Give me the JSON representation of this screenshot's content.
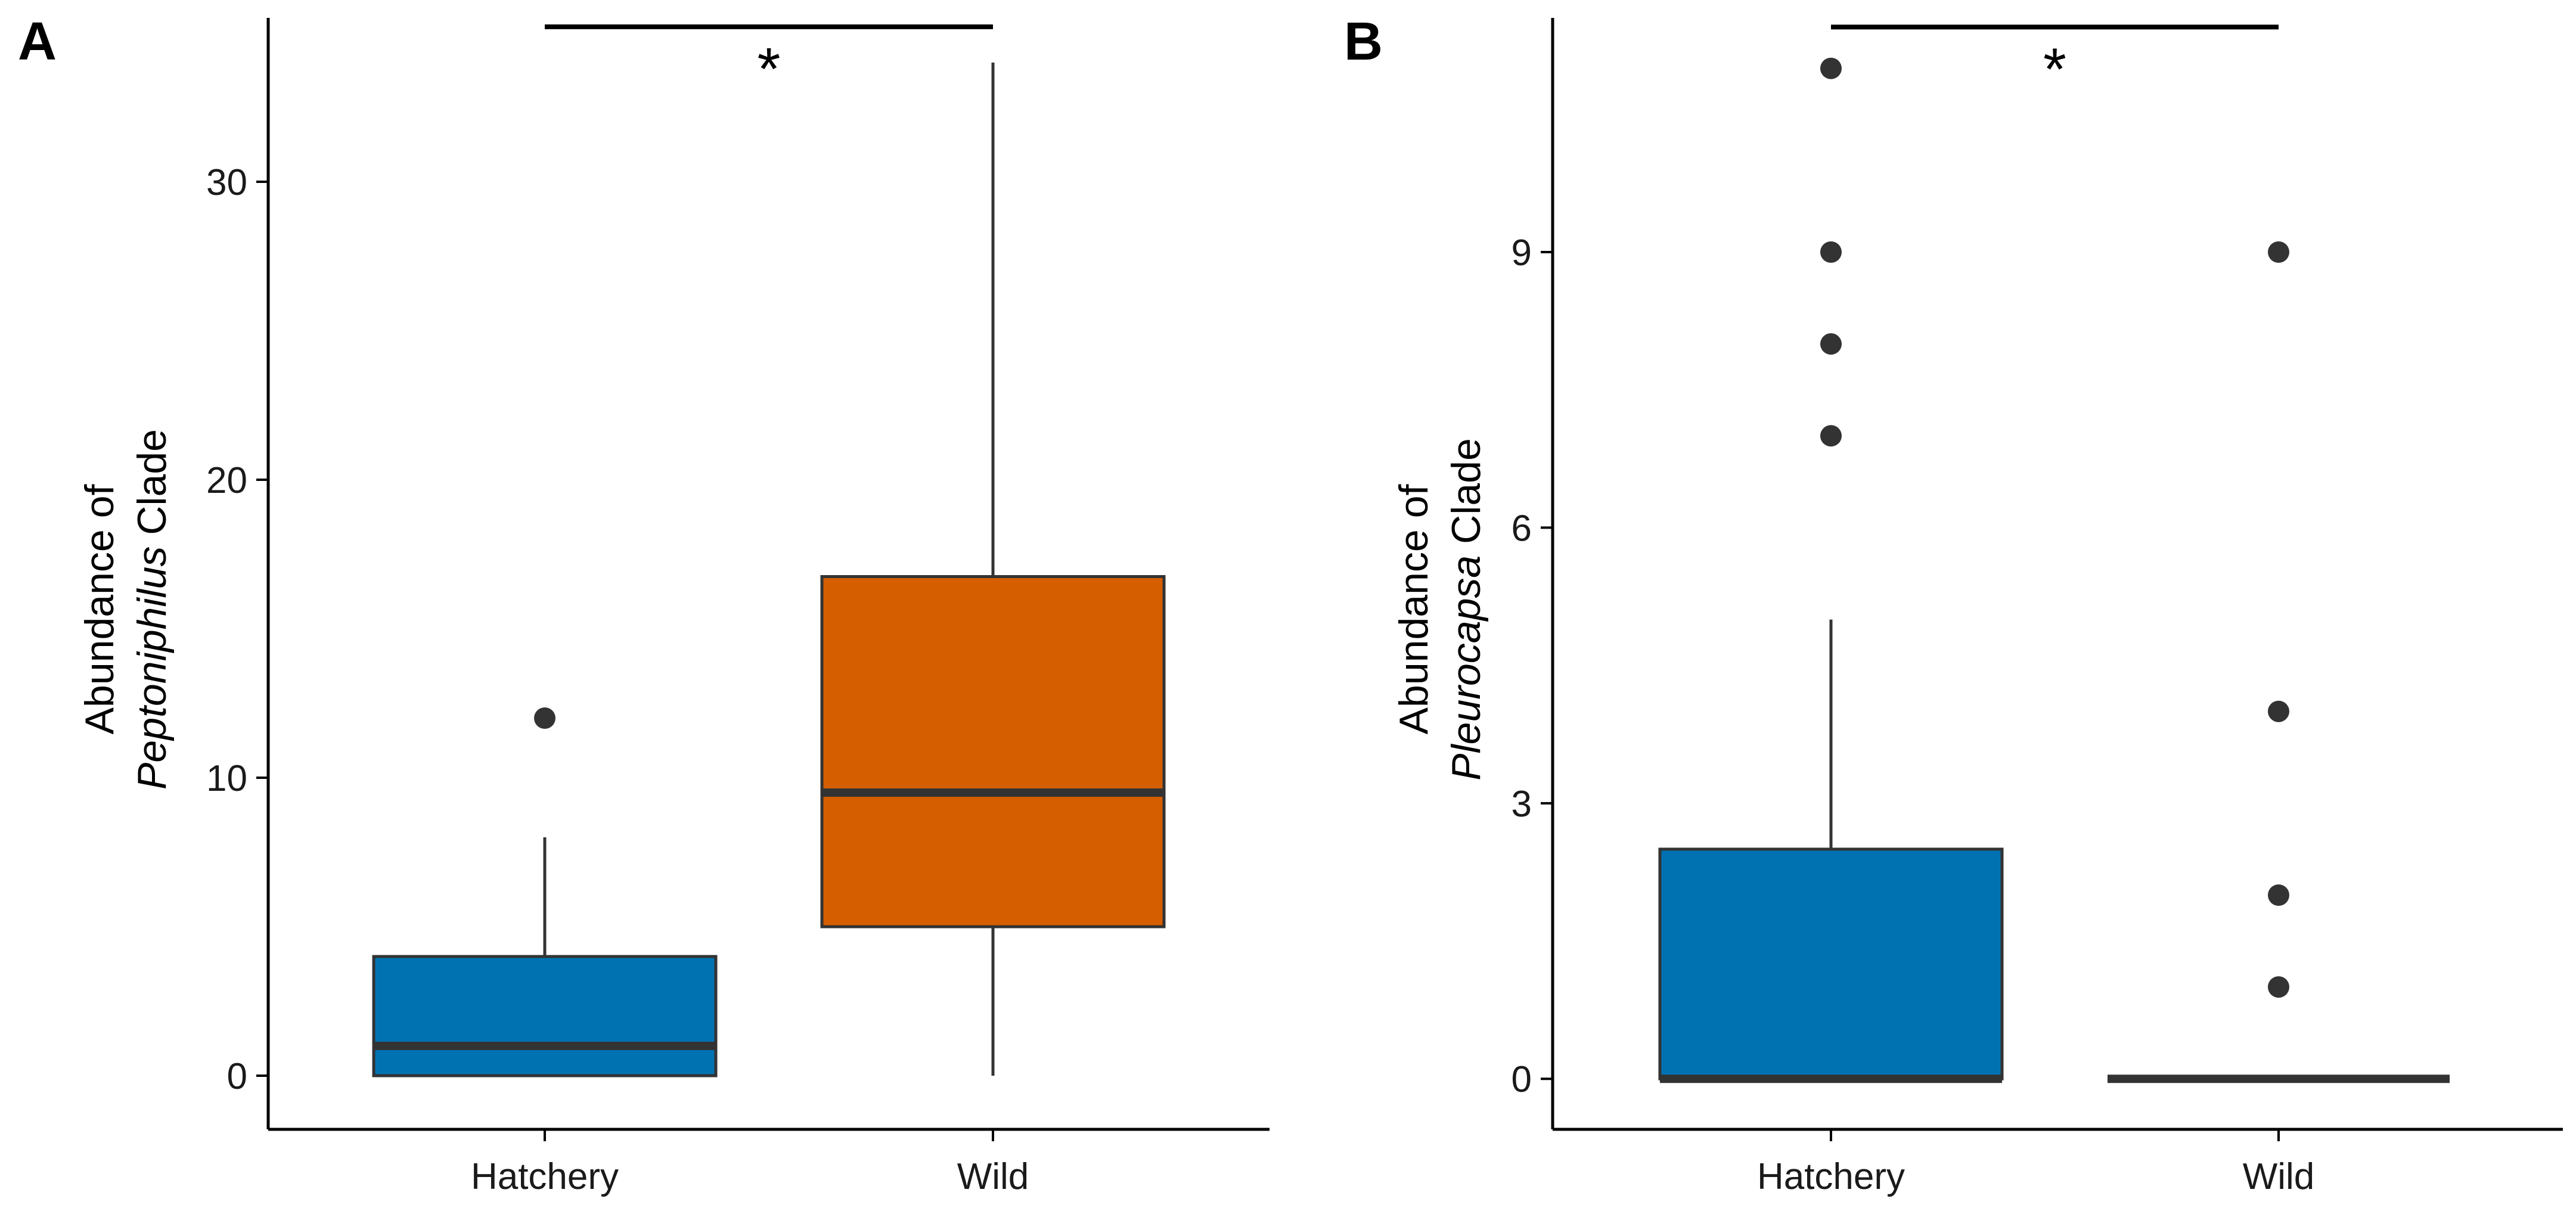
{
  "colors": {
    "hatchery": "#0072B2",
    "wild": "#D55E00",
    "outlier": "#333333"
  },
  "chart_data": [
    {
      "type": "box",
      "panel": "A",
      "ylabel_prefix": "Abundance of",
      "ylabel_italic": "Peptoniphilus",
      "ylabel_suffix": " Clade",
      "categories": [
        "Hatchery",
        "Wild"
      ],
      "ylim": [
        -1.8,
        35.5
      ],
      "yticks": [
        0,
        10,
        20,
        30
      ],
      "boxes": [
        {
          "category": "Hatchery",
          "q1": 0,
          "median": 1,
          "q3": 4,
          "whisker_low": 0,
          "whisker_high": 8,
          "outliers": [
            12
          ],
          "color": "#0072B2"
        },
        {
          "category": "Wild",
          "q1": 5,
          "median": 9.5,
          "q3": 16.75,
          "whisker_low": 0,
          "whisker_high": 34,
          "outliers": [],
          "color": "#D55E00"
        }
      ],
      "significance": {
        "label": "*",
        "from": "Hatchery",
        "to": "Wild",
        "level": 35.2
      }
    },
    {
      "type": "box",
      "panel": "B",
      "ylabel_prefix": "Abundance of",
      "ylabel_italic": "Pleurocapsa",
      "ylabel_suffix": " Clade",
      "categories": [
        "Hatchery",
        "Wild"
      ],
      "ylim": [
        -0.55,
        11.55
      ],
      "yticks": [
        0,
        3,
        6,
        9
      ],
      "boxes": [
        {
          "category": "Hatchery",
          "q1": 0,
          "median": 0,
          "q3": 2.5,
          "whisker_low": 0,
          "whisker_high": 5,
          "outliers": [
            7,
            8,
            9,
            11
          ],
          "color": "#0072B2"
        },
        {
          "category": "Wild",
          "q1": 0,
          "median": 0,
          "q3": 0,
          "whisker_low": 0,
          "whisker_high": 0,
          "outliers": [
            1,
            2,
            4,
            9
          ],
          "color": "#D55E00"
        }
      ],
      "significance": {
        "label": "*",
        "from": "Hatchery",
        "to": "Wild",
        "level": 11.45
      }
    }
  ]
}
